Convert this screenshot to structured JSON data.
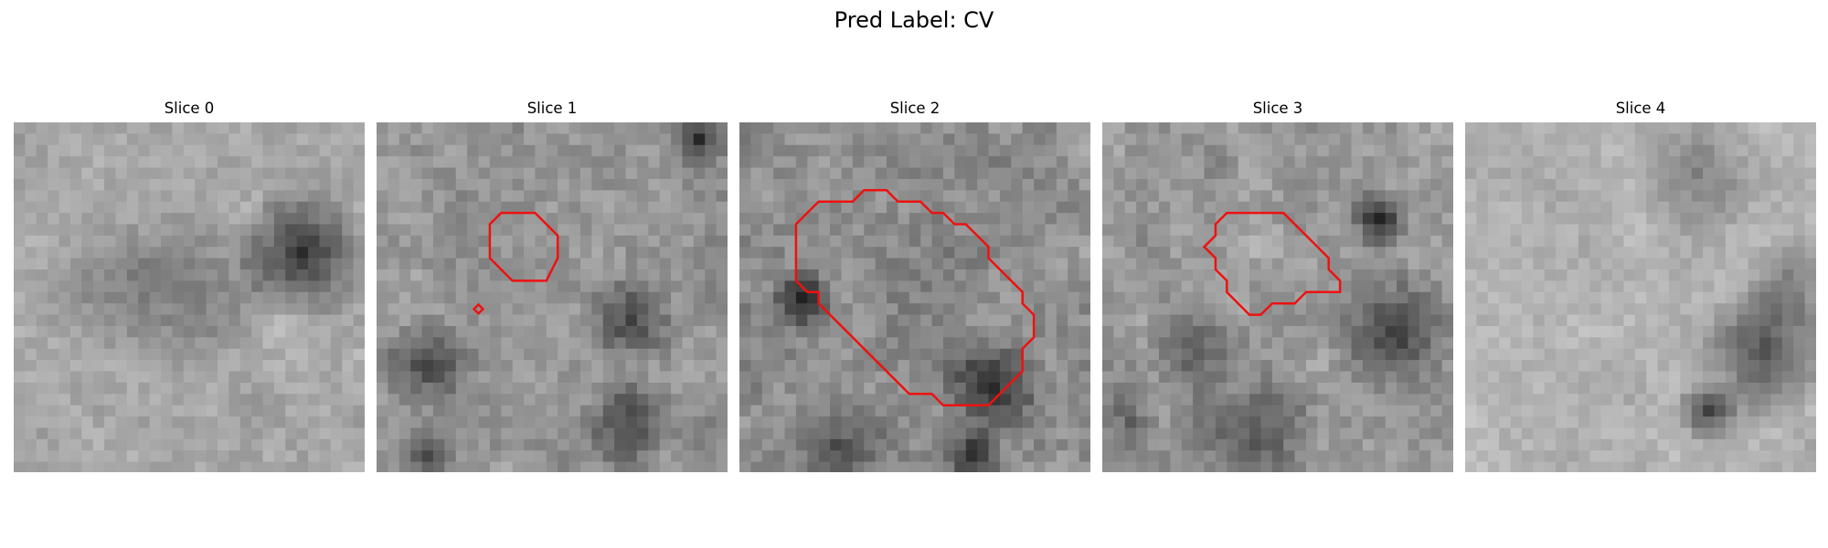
{
  "figure": {
    "title": "Pred Label: CV",
    "background_color": "#ffffff",
    "contour_color": "#ee1111",
    "colormap": "grayscale"
  },
  "panels": [
    {
      "title": "Slice 0",
      "has_contour": false
    },
    {
      "title": "Slice 1",
      "has_contour": true
    },
    {
      "title": "Slice 2",
      "has_contour": true
    },
    {
      "title": "Slice 3",
      "has_contour": true
    },
    {
      "title": "Slice 4",
      "has_contour": false
    }
  ]
}
